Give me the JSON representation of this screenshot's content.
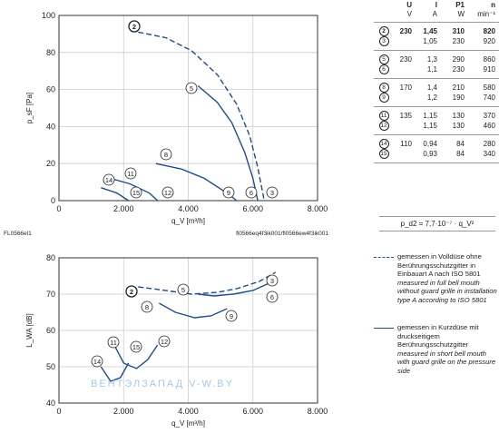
{
  "chart_data": [
    {
      "type": "line",
      "xlabel": "q_V [m³/h]",
      "ylabel": "p_sF [Pa]",
      "xlim": [
        0,
        8000
      ],
      "ylim": [
        0,
        100
      ],
      "xticks": [
        "0",
        "2.000",
        "4.000",
        "6.000",
        "8.000"
      ],
      "yticks": [
        "0",
        "20",
        "40",
        "60",
        "80",
        "100"
      ],
      "grid": true,
      "footer_left": "FL0566el1",
      "footer_right": "fl0566eq4f3ik001/fl0566ew4f3ik001",
      "series": [
        {
          "name": "2",
          "style": "dashed",
          "x": [
            2450,
            3300,
            4100,
            4900,
            5500,
            5900,
            6150,
            6350
          ],
          "y": [
            91,
            88,
            81,
            68,
            52,
            35,
            18,
            0
          ]
        },
        {
          "name": "5",
          "style": "solid",
          "x": [
            4300,
            4900,
            5350,
            5750,
            6000,
            6150
          ],
          "y": [
            62,
            53,
            42,
            26,
            12,
            0
          ]
        },
        {
          "name": "8",
          "style": "solid",
          "x": [
            3000,
            3800,
            4500,
            5200,
            5500
          ],
          "y": [
            20,
            17,
            12,
            4,
            0
          ]
        },
        {
          "name": "11",
          "style": "solid",
          "x": [
            1600,
            2200,
            2800,
            3050
          ],
          "y": [
            12,
            9,
            4,
            0
          ]
        },
        {
          "name": "14",
          "style": "solid",
          "x": [
            1300,
            1800,
            2150
          ],
          "y": [
            7,
            4,
            0
          ]
        }
      ],
      "labels": [
        "2",
        "3",
        "5",
        "6",
        "8",
        "9",
        "11",
        "12",
        "14",
        "15"
      ]
    },
    {
      "type": "line",
      "xlabel": "q_V [m³/h]",
      "ylabel": "L_WA [dB]",
      "xlim": [
        0,
        8000
      ],
      "ylim": [
        40,
        80
      ],
      "xticks": [
        "0",
        "2.000",
        "4.000",
        "6.000",
        "8.000"
      ],
      "yticks": [
        "40",
        "50",
        "60",
        "70",
        "80"
      ],
      "grid": true,
      "series": [
        {
          "name": "2",
          "style": "dashed",
          "x": [
            2450,
            3300,
            4100,
            4900,
            5500,
            6200,
            6700
          ],
          "y": [
            72,
            71,
            70,
            70.5,
            71.5,
            73.5,
            76
          ]
        },
        {
          "name": "5",
          "style": "solid",
          "x": [
            4300,
            4800,
            5400,
            6000,
            6500
          ],
          "y": [
            70,
            69.5,
            70,
            71,
            73
          ]
        },
        {
          "name": "8",
          "style": "solid",
          "x": [
            3100,
            3600,
            4200,
            4700,
            5200
          ],
          "y": [
            67.5,
            65,
            63.5,
            64,
            66
          ]
        },
        {
          "name": "11",
          "style": "solid",
          "x": [
            1650,
            2000,
            2400,
            2750,
            3050
          ],
          "y": [
            57,
            51,
            49.5,
            52,
            56
          ]
        },
        {
          "name": "14",
          "style": "solid",
          "x": [
            1300,
            1600,
            1900,
            2150
          ],
          "y": [
            50,
            46,
            47,
            51
          ]
        }
      ],
      "labels": [
        "2",
        "3",
        "5",
        "6",
        "8",
        "9",
        "11",
        "12",
        "14",
        "15"
      ]
    }
  ],
  "table": {
    "headers": [
      "U",
      "I",
      "P1",
      "n"
    ],
    "units": [
      "V",
      "A",
      "W",
      "min⁻¹"
    ],
    "groups": [
      {
        "rows": [
          {
            "id": "2",
            "U": "230",
            "I": "1,45",
            "P": "310",
            "n": "820",
            "bold": true
          },
          {
            "id": "3",
            "U": "",
            "I": "1,05",
            "P": "230",
            "n": "920"
          }
        ]
      },
      {
        "rows": [
          {
            "id": "5",
            "U": "230",
            "I": "1,3",
            "P": "290",
            "n": "860"
          },
          {
            "id": "6",
            "U": "",
            "I": "1,1",
            "P": "230",
            "n": "910"
          }
        ]
      },
      {
        "rows": [
          {
            "id": "8",
            "U": "170",
            "I": "1,4",
            "P": "210",
            "n": "580"
          },
          {
            "id": "9",
            "U": "",
            "I": "1,2",
            "P": "190",
            "n": "740"
          }
        ]
      },
      {
        "rows": [
          {
            "id": "11",
            "U": "135",
            "I": "1,15",
            "P": "130",
            "n": "370"
          },
          {
            "id": "12",
            "U": "",
            "I": "1,15",
            "P": "130",
            "n": "460"
          }
        ]
      },
      {
        "rows": [
          {
            "id": "14",
            "U": "110",
            "I": "0,94",
            "P": "84",
            "n": "280"
          },
          {
            "id": "15",
            "U": "",
            "I": "0,93",
            "P": "84",
            "n": "340"
          }
        ]
      }
    ]
  },
  "formula": "p_d2 = 7,7·10⁻⁷ · q_V²",
  "legend": {
    "dashed_de": "gemessen in Volldüse ohne Berührungsschutzgitter in Einbauart A nach ISO 5801",
    "dashed_en": "measured in full bell mouth without guard grille in installation type A according to ISO 5801",
    "solid_de": "gemessen in Kurzdüse mit druckseitigem Berührungsschutzgitter",
    "solid_en": "measured in short bell mouth with guard grille on the pressure side"
  },
  "watermark": "ВЕНТЭЛЗАПАД  V-W.BY",
  "colors": {
    "curve": "#1f4e8c",
    "grid": "#cccccc",
    "frame": "#333333",
    "watermark": "#9ec3e6"
  }
}
